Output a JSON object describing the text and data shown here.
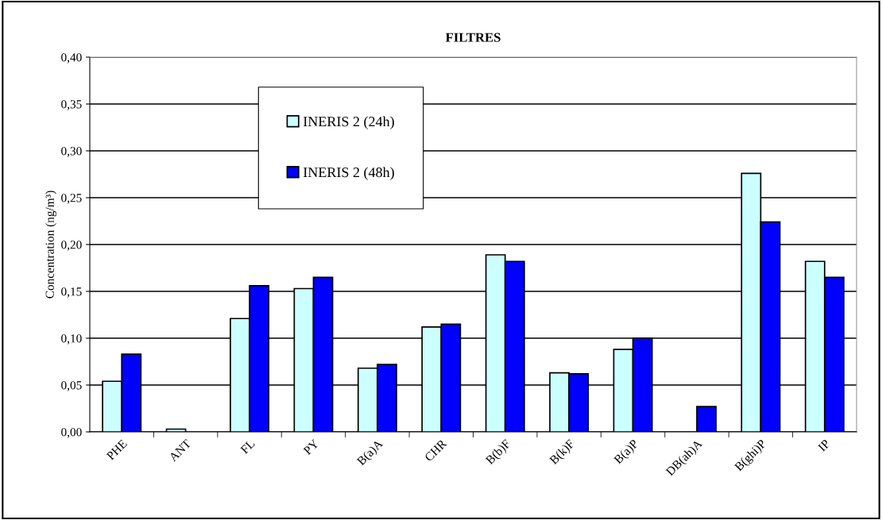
{
  "chart_data": {
    "type": "bar",
    "title": "FILTRES",
    "ylabel": "Concentration (ng/m³)",
    "categories": [
      "PHE",
      "ANT",
      "FL",
      "PY",
      "B(a)A",
      "CHR",
      "B(b)F",
      "B(k)F",
      "B(a)P",
      "DB(ah)A",
      "B(ghi)P",
      "IP"
    ],
    "series": [
      {
        "name": "INERIS 2 (24h)",
        "color": "#ccffff",
        "values": [
          0.054,
          0.003,
          0.121,
          0.153,
          0.068,
          0.112,
          0.189,
          0.063,
          0.088,
          null,
          0.276,
          0.182
        ]
      },
      {
        "name": "INERIS 2 (48h)",
        "color": "#0000ff",
        "values": [
          0.083,
          null,
          0.156,
          0.165,
          0.072,
          0.115,
          0.182,
          0.062,
          0.1,
          0.027,
          0.224,
          0.165
        ]
      }
    ],
    "ylim": [
      0,
      0.4
    ],
    "yticks": [
      {
        "value": 0,
        "label": "0,00"
      },
      {
        "value": 0.05,
        "label": "0,05"
      },
      {
        "value": 0.1,
        "label": "0,10"
      },
      {
        "value": 0.15,
        "label": "0,15"
      },
      {
        "value": 0.2,
        "label": "0,20"
      },
      {
        "value": 0.25,
        "label": "0,25"
      },
      {
        "value": 0.3,
        "label": "0,30"
      },
      {
        "value": 0.35,
        "label": "0,35"
      },
      {
        "value": 0.4,
        "label": "0,40"
      }
    ],
    "grid": "y",
    "legend": "top left"
  }
}
